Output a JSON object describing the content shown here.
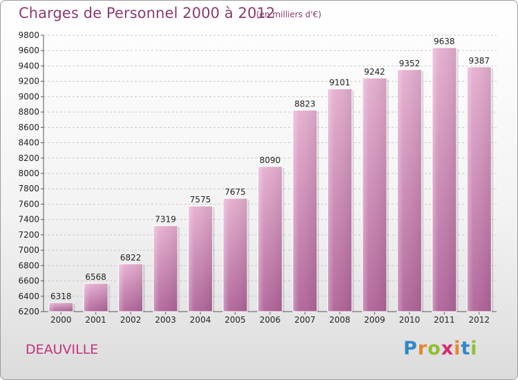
{
  "title": "Charges de Personnel 2000 à 2012",
  "subtitle": "(en milliers d'€)",
  "town": "DEAUVILLE",
  "logo": {
    "letters": [
      "P",
      "r",
      "o",
      "x",
      "i",
      "t",
      "i"
    ],
    "colors": [
      "#2f87c8",
      "#e8862a",
      "#8cbf2f",
      "#d62a6e",
      "#e8862a",
      "#2f87c8",
      "#8cbf2f"
    ]
  },
  "colors": {
    "bar": "#c97aa8",
    "bar_light": "#e6afd0",
    "title": "#8a3a72",
    "town": "#c4307a"
  },
  "chart_data": {
    "type": "bar",
    "categories": [
      "2000",
      "2001",
      "2002",
      "2003",
      "2004",
      "2005",
      "2006",
      "2007",
      "2008",
      "2009",
      "2010",
      "2011",
      "2012"
    ],
    "values": [
      6318,
      6568,
      6822,
      7319,
      7575,
      7675,
      8090,
      8823,
      9101,
      9242,
      9352,
      9638,
      9387
    ],
    "ylim": [
      6200,
      9800
    ],
    "yticks": [
      6200,
      6400,
      6600,
      6800,
      7000,
      7200,
      7400,
      7600,
      7800,
      8000,
      8200,
      8400,
      8600,
      8800,
      9000,
      9200,
      9400,
      9600,
      9800
    ],
    "grid": true,
    "xlabel": "",
    "ylabel": ""
  }
}
